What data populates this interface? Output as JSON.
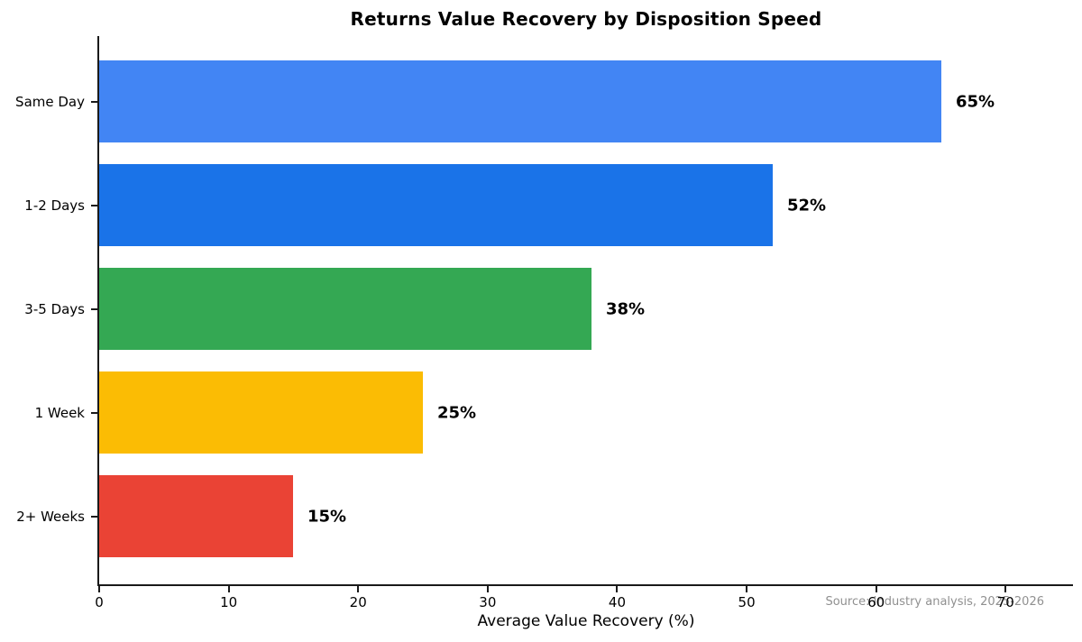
{
  "chart_data": {
    "type": "bar",
    "orientation": "horizontal",
    "title": "Returns Value Recovery by Disposition Speed",
    "xlabel": "Average Value Recovery (%)",
    "ylabel": "",
    "categories": [
      "Same Day",
      "1-2 Days",
      "3-5 Days",
      "1 Week",
      "2+ Weeks"
    ],
    "values": [
      65,
      52,
      38,
      25,
      15
    ],
    "value_labels": [
      "65%",
      "52%",
      "38%",
      "25%",
      "15%"
    ],
    "bar_colors": [
      "#4285F4",
      "#1A73E8",
      "#34A853",
      "#FBBC04",
      "#EA4335"
    ],
    "xlim": [
      0,
      75.2
    ],
    "xticks": [
      0,
      10,
      20,
      30,
      40,
      50,
      60,
      70
    ],
    "xtick_labels": [
      "0",
      "10",
      "20",
      "30",
      "40",
      "50",
      "60",
      "70"
    ],
    "grid": false,
    "legend": null,
    "source": "Source: Industry analysis, 2025-2026",
    "colors": {
      "axis": "#1a1a1a",
      "text": "#000000",
      "source_text": "#909090",
      "background": "#ffffff"
    }
  }
}
